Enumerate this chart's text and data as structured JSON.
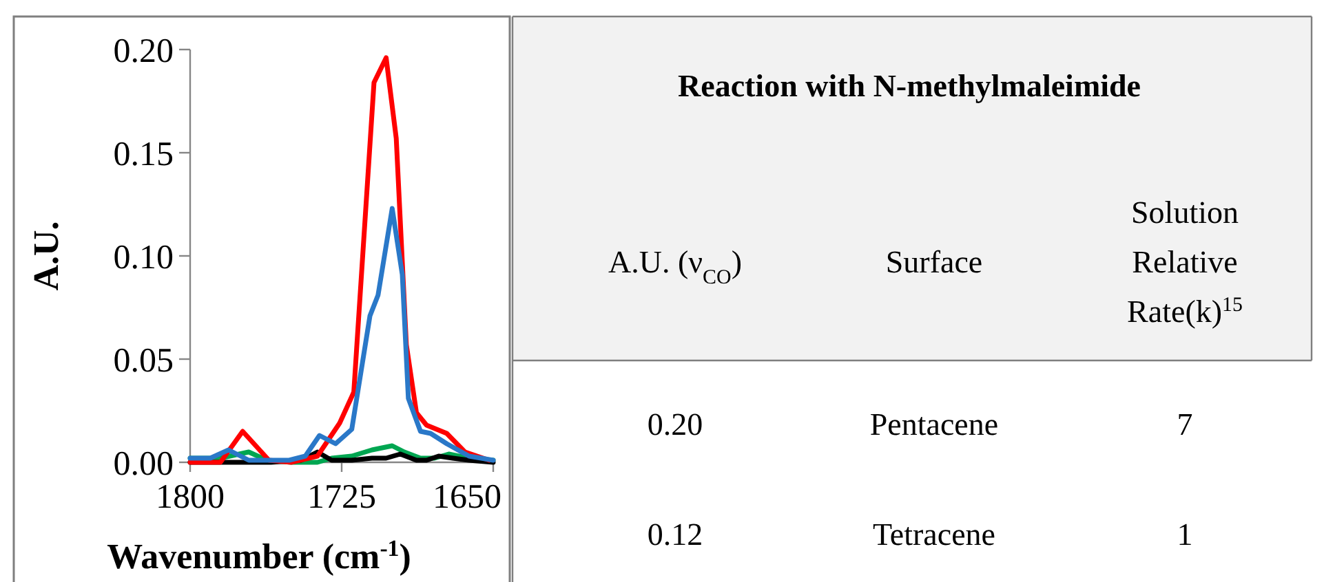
{
  "chart_data": [
    {
      "type": "line",
      "xlabel": "Wavenumber (cm$^{-1}$)",
      "ylabel": "A.U.",
      "xlim": [
        1800,
        1650
      ],
      "xticks": [
        1800,
        1725,
        1650
      ],
      "ylim": [
        0,
        0.2
      ],
      "yticks": [
        {
          "value": 0,
          "label": "0.00"
        },
        0.05,
        {
          "value": 0.1,
          "label": "0.10"
        },
        0.15,
        {
          "value": 0.2,
          "label": "0.20"
        }
      ],
      "grid": false,
      "line_style": "solid",
      "marker": "none",
      "series": [
        {
          "color": "#00a651",
          "x": [
            1800,
            1785,
            1771,
            1762,
            1750,
            1737,
            1730,
            1720,
            1710,
            1700,
            1694,
            1686,
            1679,
            1672,
            1662,
            1650
          ],
          "values": [
            0.002,
            0.002,
            0.005,
            0.001,
            0.0,
            0.0,
            0.002,
            0.003,
            0.006,
            0.008,
            0.005,
            0.002,
            0.002,
            0.004,
            0.002,
            0.001
          ]
        },
        {
          "color": "#000000",
          "x": [
            1800,
            1760,
            1745,
            1737,
            1730,
            1720,
            1710,
            1703,
            1696,
            1688,
            1683,
            1677,
            1670,
            1662,
            1650
          ],
          "values": [
            0.0,
            0.0,
            0.001,
            0.005,
            0.001,
            0.001,
            0.002,
            0.002,
            0.004,
            0.001,
            0.001,
            0.003,
            0.002,
            0.001,
            0.0
          ]
        },
        {
          "color": "#ff0000",
          "x": [
            1800,
            1785,
            1774,
            1761,
            1750,
            1737,
            1726,
            1719,
            1713,
            1709,
            1703,
            1698,
            1693,
            1688,
            1683,
            1673,
            1664,
            1652
          ],
          "values": [
            0.0,
            0.0,
            0.015,
            0.001,
            0.0,
            0.003,
            0.019,
            0.034,
            0.124,
            0.184,
            0.196,
            0.157,
            0.057,
            0.024,
            0.018,
            0.014,
            0.005,
            0.001
          ]
        },
        {
          "color": "#2a78c8",
          "x": [
            1800,
            1790,
            1781,
            1771,
            1751,
            1743,
            1736,
            1728,
            1720,
            1711,
            1707,
            1700,
            1695,
            1692,
            1686,
            1681,
            1673,
            1662,
            1650
          ],
          "values": [
            0.002,
            0.002,
            0.006,
            0.001,
            0.001,
            0.003,
            0.013,
            0.009,
            0.016,
            0.071,
            0.081,
            0.123,
            0.091,
            0.031,
            0.015,
            0.014,
            0.009,
            0.003,
            0.001
          ]
        }
      ]
    },
    {
      "type": "other",
      "title": "Reaction with N-methylmaleimide",
      "categories": [
        "A.U. (ν$_{CO}$)",
        "Surface",
        "Solution Relative Rate(k)$^{15}$"
      ],
      "annotations": [
        "0.20",
        "Pentacene",
        "7",
        "0.12",
        "Tetracene",
        "1"
      ]
    }
  ]
}
